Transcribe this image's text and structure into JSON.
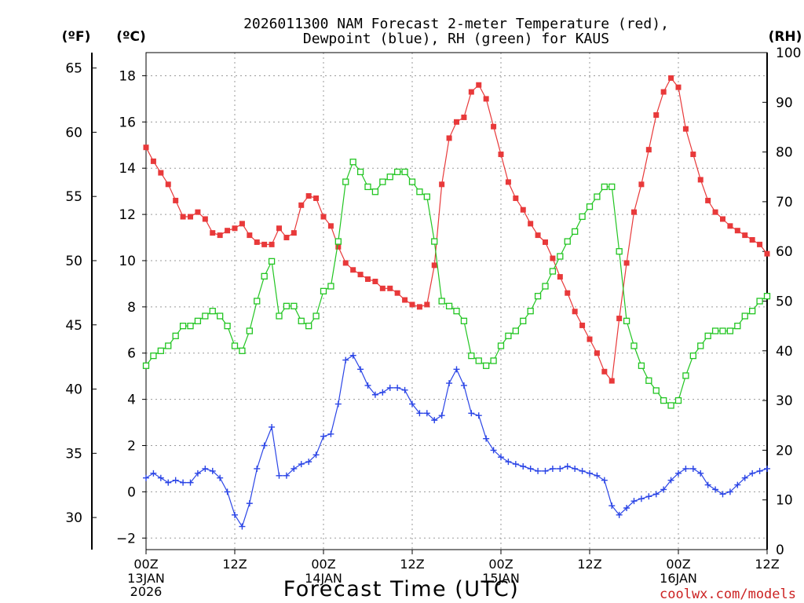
{
  "chart_data": {
    "type": "line",
    "title_line1": "2026011300 NAM Forecast 2-meter Temperature (red),",
    "title_line2": "Dewpoint (blue), RH (green) for KAUS",
    "xlabel": "Forecast Time (UTC)",
    "watermark": "coolwx.com/models",
    "unit_labels": {
      "fahrenheit": "(ºF)",
      "celsius": "(ºC)",
      "rh": "(RH)"
    },
    "xlim": [
      0,
      84
    ],
    "x_unit": "forecast hour",
    "x_ticks": [
      {
        "x": 0,
        "label": "00Z",
        "sub": [
          "13JAN",
          "2026"
        ]
      },
      {
        "x": 12,
        "label": "12Z",
        "sub": []
      },
      {
        "x": 24,
        "label": "00Z",
        "sub": [
          "14JAN"
        ]
      },
      {
        "x": 36,
        "label": "12Z",
        "sub": []
      },
      {
        "x": 48,
        "label": "00Z",
        "sub": [
          "15JAN"
        ]
      },
      {
        "x": 60,
        "label": "12Z",
        "sub": []
      },
      {
        "x": 72,
        "label": "00Z",
        "sub": [
          "16JAN"
        ]
      },
      {
        "x": 84,
        "label": "12Z",
        "sub": []
      }
    ],
    "celsius_axis": {
      "ylim": [
        -2.5,
        19.0
      ],
      "ticks": [
        -2,
        0,
        2,
        4,
        6,
        8,
        10,
        12,
        14,
        16,
        18
      ]
    },
    "fahrenheit_axis": {
      "ticks": [
        30,
        35,
        40,
        45,
        50,
        55,
        60,
        65
      ]
    },
    "rh_axis": {
      "ylim": [
        0,
        100
      ],
      "ticks": [
        0,
        10,
        20,
        30,
        40,
        50,
        60,
        70,
        80,
        90,
        100
      ]
    },
    "grid": true,
    "series": [
      {
        "name": "Temperature",
        "axis": "celsius",
        "color": "#e8393a",
        "marker": "filled-square",
        "x": [
          0,
          1,
          2,
          3,
          4,
          5,
          6,
          7,
          8,
          9,
          10,
          11,
          12,
          13,
          14,
          15,
          16,
          17,
          18,
          19,
          20,
          21,
          22,
          23,
          24,
          25,
          26,
          27,
          28,
          29,
          30,
          31,
          32,
          33,
          34,
          35,
          36,
          37,
          38,
          39,
          40,
          41,
          42,
          43,
          44,
          45,
          46,
          47,
          48,
          49,
          50,
          51,
          52,
          53,
          54,
          55,
          56,
          57,
          58,
          59,
          60,
          61,
          62,
          63,
          64,
          65,
          66,
          67,
          68,
          69,
          70,
          71,
          72,
          73,
          74,
          75,
          76,
          77,
          78,
          79,
          80,
          81,
          82,
          83,
          84
        ],
        "values": [
          14.9,
          14.3,
          13.8,
          13.3,
          12.6,
          11.9,
          11.9,
          12.1,
          11.8,
          11.2,
          11.1,
          11.3,
          11.4,
          11.6,
          11.1,
          10.8,
          10.7,
          10.7,
          11.4,
          11.0,
          11.2,
          12.4,
          12.8,
          12.7,
          11.9,
          11.5,
          10.6,
          9.9,
          9.6,
          9.4,
          9.2,
          9.1,
          8.8,
          8.8,
          8.6,
          8.3,
          8.1,
          8.0,
          8.1,
          9.8,
          13.3,
          15.3,
          16.0,
          16.2,
          17.3,
          17.6,
          17.0,
          15.8,
          14.6,
          13.4,
          12.7,
          12.2,
          11.6,
          11.1,
          10.8,
          10.1,
          9.3,
          8.6,
          7.8,
          7.2,
          6.6,
          6.0,
          5.2,
          4.8,
          7.5,
          9.9,
          12.1,
          13.3,
          14.8,
          16.3,
          17.3,
          17.9,
          17.5,
          15.7,
          14.6,
          13.5,
          12.6,
          12.1,
          11.8,
          11.5,
          11.3,
          11.1,
          10.9,
          10.7,
          10.3
        ]
      },
      {
        "name": "Dewpoint",
        "axis": "celsius",
        "color": "#2b45e6",
        "marker": "plus",
        "x": [
          0,
          1,
          2,
          3,
          4,
          5,
          6,
          7,
          8,
          9,
          10,
          11,
          12,
          13,
          14,
          15,
          16,
          17,
          18,
          19,
          20,
          21,
          22,
          23,
          24,
          25,
          26,
          27,
          28,
          29,
          30,
          31,
          32,
          33,
          34,
          35,
          36,
          37,
          38,
          39,
          40,
          41,
          42,
          43,
          44,
          45,
          46,
          47,
          48,
          49,
          50,
          51,
          52,
          53,
          54,
          55,
          56,
          57,
          58,
          59,
          60,
          61,
          62,
          63,
          64,
          65,
          66,
          67,
          68,
          69,
          70,
          71,
          72,
          73,
          74,
          75,
          76,
          77,
          78,
          79,
          80,
          81,
          82,
          83,
          84
        ],
        "values": [
          0.6,
          0.8,
          0.6,
          0.4,
          0.5,
          0.4,
          0.4,
          0.8,
          1.0,
          0.9,
          0.6,
          0.0,
          -1.0,
          -1.5,
          -0.5,
          1.0,
          2.0,
          2.8,
          0.7,
          0.7,
          1.0,
          1.2,
          1.3,
          1.6,
          2.4,
          2.5,
          3.8,
          5.7,
          5.9,
          5.3,
          4.6,
          4.2,
          4.3,
          4.5,
          4.5,
          4.4,
          3.8,
          3.4,
          3.4,
          3.1,
          3.3,
          4.7,
          5.3,
          4.6,
          3.4,
          3.3,
          2.3,
          1.8,
          1.5,
          1.3,
          1.2,
          1.1,
          1.0,
          0.9,
          0.9,
          1.0,
          1.0,
          1.1,
          1.0,
          0.9,
          0.8,
          0.7,
          0.5,
          -0.6,
          -1.0,
          -0.7,
          -0.4,
          -0.3,
          -0.2,
          -0.1,
          0.1,
          0.5,
          0.8,
          1.0,
          1.0,
          0.8,
          0.3,
          0.1,
          -0.1,
          0.0,
          0.3,
          0.6,
          0.8,
          0.9,
          1.0
        ]
      },
      {
        "name": "RH",
        "axis": "rh",
        "color": "#22c522",
        "marker": "open-square",
        "x": [
          0,
          1,
          2,
          3,
          4,
          5,
          6,
          7,
          8,
          9,
          10,
          11,
          12,
          13,
          14,
          15,
          16,
          17,
          18,
          19,
          20,
          21,
          22,
          23,
          24,
          25,
          26,
          27,
          28,
          29,
          30,
          31,
          32,
          33,
          34,
          35,
          36,
          37,
          38,
          39,
          40,
          41,
          42,
          43,
          44,
          45,
          46,
          47,
          48,
          49,
          50,
          51,
          52,
          53,
          54,
          55,
          56,
          57,
          58,
          59,
          60,
          61,
          62,
          63,
          64,
          65,
          66,
          67,
          68,
          69,
          70,
          71,
          72,
          73,
          74,
          75,
          76,
          77,
          78,
          79,
          80,
          81,
          82,
          83,
          84
        ],
        "values": [
          37,
          39,
          40,
          41,
          43,
          45,
          45,
          46,
          47,
          48,
          47,
          45,
          41,
          40,
          44,
          50,
          55,
          58,
          47,
          49,
          49,
          46,
          45,
          47,
          52,
          53,
          62,
          74,
          78,
          76,
          73,
          72,
          74,
          75,
          76,
          76,
          74,
          72,
          71,
          62,
          50,
          49,
          48,
          46,
          39,
          38,
          37,
          38,
          41,
          43,
          44,
          46,
          48,
          51,
          53,
          56,
          59,
          62,
          64,
          67,
          69,
          71,
          73,
          73,
          60,
          46,
          41,
          37,
          34,
          32,
          30,
          29,
          30,
          35,
          39,
          41,
          43,
          44,
          44,
          44,
          45,
          47,
          48,
          50,
          51
        ]
      }
    ]
  }
}
